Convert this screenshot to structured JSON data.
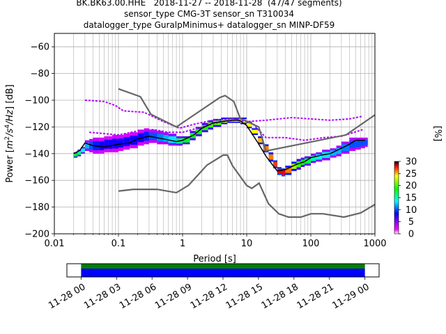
{
  "header": {
    "line1": "BK.BK63.00.HHE   2018-11-27 -- 2018-11-28  (47/47 segments)",
    "line2": "sensor_type CMG-3T sensor_sn T310034",
    "line3": "datalogger_type GuralpMinimus+ datalogger_sn MINP-DF59"
  },
  "chart_data": {
    "type": "heatmap",
    "xlabel": "Period [s]",
    "ylabel_parts": {
      "a": "Power [",
      "b": "m",
      "c": "2",
      "d": "/s",
      "e": "4",
      "f": "/Hz",
      "g": "] [dB]"
    },
    "xscale": "log",
    "xlim": [
      0.01,
      1000
    ],
    "ylim": [
      -200,
      -50
    ],
    "x_ticks": [
      0.01,
      0.1,
      1,
      10,
      100,
      1000
    ],
    "x_tick_labels": [
      "0.01",
      "0.1",
      "1",
      "10",
      "100",
      "1000"
    ],
    "y_ticks": [
      -200,
      -180,
      -160,
      -140,
      -120,
      -100,
      -80,
      -60
    ],
    "y_tick_labels": [
      "−200",
      "−180",
      "−160",
      "−140",
      "−120",
      "−100",
      "−80",
      "−60"
    ],
    "grid": true,
    "colorbar": {
      "label": "[%]",
      "range": [
        0,
        30
      ],
      "ticks": [
        0,
        5,
        10,
        15,
        20,
        25,
        30
      ],
      "tick_labels": [
        "0",
        "5",
        "10",
        "15",
        "20",
        "25",
        "30"
      ],
      "colors": [
        "#ffffff",
        "#ff00ff",
        "#0000ff",
        "#00ffff",
        "#00ff00",
        "#ffff00",
        "#ff0000",
        "#000000"
      ]
    },
    "noise_models": {
      "color": "#666666",
      "nhnm": [
        [
          0.1,
          -91.5
        ],
        [
          0.22,
          -97.4
        ],
        [
          0.32,
          -110.5
        ],
        [
          0.8,
          -120
        ],
        [
          3.8,
          -98
        ],
        [
          4.6,
          -96.5
        ],
        [
          6.3,
          -101
        ],
        [
          7.9,
          -113.5
        ],
        [
          15.4,
          -120
        ],
        [
          20,
          -138
        ],
        [
          354.8,
          -126
        ],
        [
          1000,
          -111
        ]
      ],
      "nlnm": [
        [
          0.1,
          -168
        ],
        [
          0.17,
          -166.7
        ],
        [
          0.4,
          -166.7
        ],
        [
          0.8,
          -169.2
        ],
        [
          1.24,
          -163.7
        ],
        [
          2.4,
          -148.6
        ],
        [
          4.3,
          -141.1
        ],
        [
          5,
          -141.1
        ],
        [
          6,
          -149
        ],
        [
          10,
          -163.8
        ],
        [
          12,
          -166
        ],
        [
          15.6,
          -162.1
        ],
        [
          21.9,
          -177.5
        ],
        [
          31.6,
          -185
        ],
        [
          45,
          -187.5
        ],
        [
          70,
          -187.5
        ],
        [
          101,
          -185
        ],
        [
          154,
          -185
        ],
        [
          328,
          -187.5
        ],
        [
          600,
          -184.4
        ],
        [
          1000,
          -178
        ]
      ]
    },
    "median_line": {
      "color": "#000000",
      "points": [
        [
          0.02,
          -140
        ],
        [
          0.025,
          -137.5
        ],
        [
          0.03,
          -132
        ],
        [
          0.04,
          -134
        ],
        [
          0.06,
          -135
        ],
        [
          0.1,
          -133
        ],
        [
          0.15,
          -132
        ],
        [
          0.2,
          -129
        ],
        [
          0.3,
          -127
        ],
        [
          0.5,
          -129
        ],
        [
          0.8,
          -131
        ],
        [
          1,
          -130
        ],
        [
          1.5,
          -126
        ],
        [
          2,
          -121
        ],
        [
          3,
          -117
        ],
        [
          5,
          -115.5
        ],
        [
          7,
          -115
        ],
        [
          8,
          -115.5
        ],
        [
          10,
          -119
        ],
        [
          15,
          -132
        ],
        [
          20,
          -142
        ],
        [
          30,
          -153
        ],
        [
          40,
          -152
        ],
        [
          60,
          -148
        ],
        [
          80,
          -146
        ],
        [
          100,
          -143
        ],
        [
          150,
          -141
        ],
        [
          200,
          -140
        ],
        [
          300,
          -136
        ],
        [
          400,
          -133
        ],
        [
          500,
          -130
        ],
        [
          700,
          -130
        ]
      ]
    },
    "outlier_lines": [
      {
        "points": [
          [
            0.03,
            -100
          ],
          [
            0.06,
            -101
          ],
          [
            0.09,
            -104
          ],
          [
            0.12,
            -108
          ],
          [
            0.25,
            -109
          ],
          [
            0.5,
            -116
          ],
          [
            0.9,
            -121
          ],
          [
            1.5,
            -118
          ],
          [
            3,
            -115
          ],
          [
            6,
            -114
          ],
          [
            10,
            -116
          ],
          [
            20,
            -115
          ],
          [
            50,
            -113
          ],
          [
            100,
            -114
          ],
          [
            200,
            -115
          ],
          [
            400,
            -114
          ],
          [
            650,
            -112
          ]
        ]
      },
      {
        "points": [
          [
            0.035,
            -124
          ],
          [
            0.06,
            -125
          ],
          [
            0.1,
            -126
          ],
          [
            0.2,
            -123
          ],
          [
            0.35,
            -122
          ],
          [
            0.6,
            -124
          ],
          [
            1,
            -124
          ],
          [
            2,
            -120
          ],
          [
            4,
            -116
          ],
          [
            8,
            -114
          ],
          [
            12,
            -117
          ],
          [
            20,
            -128
          ],
          [
            40,
            -128
          ],
          [
            80,
            -130
          ],
          [
            160,
            -128
          ],
          [
            300,
            -127
          ],
          [
            650,
            -122
          ]
        ]
      }
    ],
    "psd_bands": [
      {
        "p": 0.02,
        "lo": -143,
        "hi": -139,
        "pct": 18
      },
      {
        "p": 0.023,
        "lo": -142,
        "hi": -137,
        "pct": 16
      },
      {
        "p": 0.026,
        "lo": -140,
        "hi": -135,
        "pct": 14
      },
      {
        "p": 0.03,
        "lo": -138,
        "hi": -130,
        "pct": 12
      },
      {
        "p": 0.035,
        "lo": -139,
        "hi": -129,
        "pct": 10
      },
      {
        "p": 0.04,
        "lo": -140,
        "hi": -128,
        "pct": 9
      },
      {
        "p": 0.05,
        "lo": -140,
        "hi": -128,
        "pct": 8
      },
      {
        "p": 0.06,
        "lo": -139,
        "hi": -127,
        "pct": 8
      },
      {
        "p": 0.07,
        "lo": -139,
        "hi": -127,
        "pct": 8
      },
      {
        "p": 0.08,
        "lo": -139,
        "hi": -126,
        "pct": 8
      },
      {
        "p": 0.1,
        "lo": -138,
        "hi": -126,
        "pct": 8
      },
      {
        "p": 0.12,
        "lo": -137,
        "hi": -125,
        "pct": 8
      },
      {
        "p": 0.15,
        "lo": -136,
        "hi": -124,
        "pct": 8
      },
      {
        "p": 0.2,
        "lo": -134,
        "hi": -122,
        "pct": 8
      },
      {
        "p": 0.25,
        "lo": -133,
        "hi": -121,
        "pct": 9
      },
      {
        "p": 0.3,
        "lo": -132,
        "hi": -122,
        "pct": 10
      },
      {
        "p": 0.4,
        "lo": -133,
        "hi": -123,
        "pct": 11
      },
      {
        "p": 0.5,
        "lo": -133,
        "hi": -124,
        "pct": 12
      },
      {
        "p": 0.6,
        "lo": -134,
        "hi": -125,
        "pct": 13
      },
      {
        "p": 0.8,
        "lo": -134,
        "hi": -127,
        "pct": 16
      },
      {
        "p": 1,
        "lo": -133,
        "hi": -127,
        "pct": 18
      },
      {
        "p": 1.3,
        "lo": -130,
        "hi": -123,
        "pct": 18
      },
      {
        "p": 1.6,
        "lo": -127,
        "hi": -120,
        "pct": 19
      },
      {
        "p": 2,
        "lo": -124,
        "hi": -117,
        "pct": 19
      },
      {
        "p": 2.5,
        "lo": -122,
        "hi": -115,
        "pct": 20
      },
      {
        "p": 3,
        "lo": -120,
        "hi": -114,
        "pct": 20
      },
      {
        "p": 4,
        "lo": -118,
        "hi": -113,
        "pct": 22
      },
      {
        "p": 5,
        "lo": -117,
        "hi": -113,
        "pct": 22
      },
      {
        "p": 6,
        "lo": -117,
        "hi": -113,
        "pct": 23
      },
      {
        "p": 7,
        "lo": -117,
        "hi": -113,
        "pct": 23
      },
      {
        "p": 8,
        "lo": -118,
        "hi": -113,
        "pct": 23
      },
      {
        "p": 10,
        "lo": -121,
        "hi": -116,
        "pct": 24
      },
      {
        "p": 12,
        "lo": -126,
        "hi": -121,
        "pct": 24
      },
      {
        "p": 15,
        "lo": -133,
        "hi": -127,
        "pct": 25
      },
      {
        "p": 18,
        "lo": -139,
        "hi": -133,
        "pct": 26
      },
      {
        "p": 22,
        "lo": -146,
        "hi": -139,
        "pct": 26
      },
      {
        "p": 26,
        "lo": -151,
        "hi": -145,
        "pct": 27
      },
      {
        "p": 30,
        "lo": -156,
        "hi": -150,
        "pct": 28
      },
      {
        "p": 35,
        "lo": -157,
        "hi": -151,
        "pct": 28
      },
      {
        "p": 40,
        "lo": -156,
        "hi": -149,
        "pct": 26
      },
      {
        "p": 50,
        "lo": -153,
        "hi": -146,
        "pct": 22
      },
      {
        "p": 60,
        "lo": -152,
        "hi": -144,
        "pct": 20
      },
      {
        "p": 70,
        "lo": -150,
        "hi": -143,
        "pct": 18
      },
      {
        "p": 80,
        "lo": -149,
        "hi": -142,
        "pct": 17
      },
      {
        "p": 100,
        "lo": -147,
        "hi": -140,
        "pct": 15
      },
      {
        "p": 120,
        "lo": -146,
        "hi": -139,
        "pct": 14
      },
      {
        "p": 150,
        "lo": -145,
        "hi": -137,
        "pct": 13
      },
      {
        "p": 200,
        "lo": -143,
        "hi": -136,
        "pct": 12
      },
      {
        "p": 250,
        "lo": -142,
        "hi": -134,
        "pct": 12
      },
      {
        "p": 300,
        "lo": -140,
        "hi": -131,
        "pct": 11
      },
      {
        "p": 400,
        "lo": -138,
        "hi": -128,
        "pct": 10
      },
      {
        "p": 500,
        "lo": -137,
        "hi": -128,
        "pct": 10
      },
      {
        "p": 600,
        "lo": -136,
        "hi": -128,
        "pct": 10
      },
      {
        "p": 700,
        "lo": -135,
        "hi": -128,
        "pct": 10
      }
    ],
    "timeline": {
      "tick_labels": [
        "11-28 00",
        "11-28 03",
        "11-28 06",
        "11-28 09",
        "11-28 12",
        "11-28 15",
        "11-28 18",
        "11-28 21",
        "11-29 00"
      ],
      "tick_hours": [
        0,
        3,
        6,
        9,
        12,
        15,
        18,
        21,
        24
      ],
      "range_hours": [
        -1.2,
        25.2
      ],
      "data_hours": [
        0,
        24
      ],
      "colors": {
        "upper": "#008000",
        "lower": "#0000ff"
      }
    }
  }
}
